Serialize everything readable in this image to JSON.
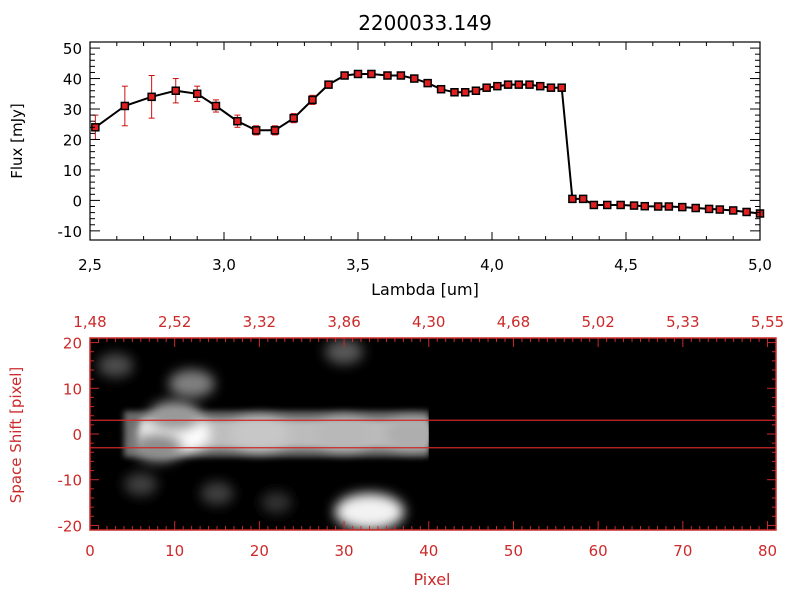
{
  "title": "2200033.149",
  "colors": {
    "background": "#ffffff",
    "spectrum_axes": "#000000",
    "spectrum_line": "#000000",
    "marker": "#e02020",
    "error_bar": "#d01010",
    "image_axes": "#cc2a2a",
    "image_background": "#000000",
    "slit_lines": "#cc2a2a"
  },
  "chart_data": [
    {
      "type": "line",
      "xlabel": "Lambda [um]",
      "ylabel": "Flux [mJy]",
      "xlim": [
        2.5,
        5.0
      ],
      "ylim": [
        -13,
        52
      ],
      "xticks": [
        2.5,
        3.0,
        3.5,
        4.0,
        4.5,
        5.0
      ],
      "xtick_labels": [
        "2,5",
        "3,0",
        "3,5",
        "4,0",
        "4,5",
        "5,0"
      ],
      "yticks": [
        -10,
        0,
        10,
        20,
        30,
        40,
        50
      ],
      "ytick_labels": [
        "-10",
        "0",
        "10",
        "20",
        "30",
        "40",
        "50"
      ],
      "grid": false,
      "series": [
        {
          "x": [
            2.52,
            2.63,
            2.73,
            2.82,
            2.9,
            2.97,
            3.05,
            3.12,
            3.19,
            3.26,
            3.33,
            3.39,
            3.45,
            3.5,
            3.55,
            3.61,
            3.66,
            3.71,
            3.76,
            3.81,
            3.86,
            3.9,
            3.94,
            3.98,
            4.02,
            4.06,
            4.1,
            4.14,
            4.18,
            4.22,
            4.26,
            4.3,
            4.34,
            4.38,
            4.43,
            4.48,
            4.53,
            4.57,
            4.62,
            4.66,
            4.71,
            4.76,
            4.81,
            4.85,
            4.9,
            4.95,
            5.0
          ],
          "y": [
            24.0,
            31.0,
            34.0,
            36.0,
            35.0,
            31.0,
            26.0,
            23.0,
            23.0,
            27.0,
            33.0,
            38.0,
            41.0,
            41.5,
            41.5,
            41.0,
            41.0,
            40.0,
            38.5,
            36.5,
            35.5,
            35.5,
            36.0,
            37.0,
            37.5,
            38.0,
            38.0,
            38.0,
            37.5,
            37.0,
            37.0,
            0.5,
            0.5,
            -1.5,
            -1.5,
            -1.5,
            -1.7,
            -1.9,
            -2.0,
            -2.0,
            -2.2,
            -2.5,
            -2.8,
            -3.0,
            -3.3,
            -3.8,
            -4.3
          ],
          "yerr": [
            4.0,
            6.5,
            7.0,
            4.0,
            2.5,
            2.0,
            2.0,
            1.5,
            1.5,
            1.5,
            1.5,
            1.0,
            0.8,
            0.8,
            0.5,
            0.5,
            0.5,
            0.5,
            0.5,
            0.5,
            0.5,
            0.5,
            0.5,
            0.5,
            0.5,
            0.5,
            0.5,
            0.5,
            0.5,
            0.5,
            0.5,
            0.5,
            0.5,
            0.4,
            0.4,
            0.4,
            0.4,
            0.4,
            0.4,
            0.4,
            0.4,
            0.4,
            0.4,
            0.4,
            0.4,
            0.4,
            0.4
          ]
        }
      ]
    },
    {
      "type": "heatmap",
      "xlabel": "Pixel",
      "ylabel": "Space Shift [pixel]",
      "xlim": [
        0,
        81
      ],
      "ylim": [
        -21,
        21
      ],
      "xticks": [
        0,
        10,
        20,
        30,
        40,
        50,
        60,
        70,
        80
      ],
      "yticks": [
        -20,
        -10,
        0,
        10,
        20
      ],
      "ytick_labels": [
        "-20",
        "-10",
        "0",
        "10",
        "20"
      ],
      "top_axis_label_positions": [
        0,
        10,
        20,
        30,
        40,
        50,
        60,
        70,
        80
      ],
      "top_axis_labels": [
        "1,48",
        "2,52",
        "3,32",
        "3,86",
        "4,30",
        "4,68",
        "5,02",
        "5,33",
        "5,55"
      ],
      "extraction_window": [
        -3,
        3
      ],
      "emission_extent_pixels": [
        0,
        40
      ],
      "blobs": [
        {
          "x": 10,
          "y": 0,
          "intensity": 1.0
        },
        {
          "x": 20,
          "y": 0,
          "intensity": 0.78
        },
        {
          "x": 30,
          "y": 0,
          "intensity": 0.72
        },
        {
          "x": 38,
          "y": 0,
          "intensity": 0.68
        },
        {
          "x": 12,
          "y": 11,
          "intensity": 0.5
        },
        {
          "x": 33,
          "y": -17,
          "intensity": 0.95
        },
        {
          "x": 30,
          "y": 18,
          "intensity": 0.35
        },
        {
          "x": 3,
          "y": 15,
          "intensity": 0.3
        },
        {
          "x": 6,
          "y": -11,
          "intensity": 0.25
        },
        {
          "x": 15,
          "y": -13,
          "intensity": 0.25
        },
        {
          "x": 22,
          "y": -15,
          "intensity": 0.2
        },
        {
          "x": 8,
          "y": -3,
          "intensity": 0.55
        },
        {
          "x": 10,
          "y": 4,
          "intensity": 0.6
        }
      ]
    }
  ]
}
